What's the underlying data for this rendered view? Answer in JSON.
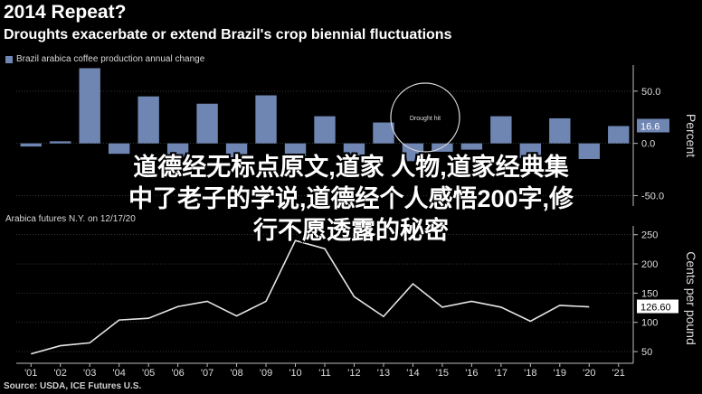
{
  "header": {
    "title": "2014 Repeat?",
    "subtitle": "Droughts exacerbate or extend Brazil's crop biennial fluctuations"
  },
  "overlay": {
    "lines": [
      "道德经无标点原文,道家 人物,道家经典集",
      "中了老子的学说,道德经个人感悟200字,修",
      "行不愿透露的秘密"
    ]
  },
  "source": "Source: USDA, ICE Futures U.S.",
  "colors": {
    "bar": "#6f86b3",
    "line": "#e6e6e6",
    "background": "#000000"
  },
  "chart_data": [
    {
      "type": "bar",
      "legend": "Brazil arabica coffee production annual change",
      "ylabel": "Percent",
      "ylim": [
        -60,
        75
      ],
      "yticks": [
        "-50.0",
        "0.0",
        "50.0"
      ],
      "grid": true,
      "categories": [
        "'01",
        "'02",
        "'03",
        "'04",
        "'05",
        "'06",
        "'07",
        "'08",
        "'09",
        "'10",
        "'11",
        "'12",
        "'13",
        "'14",
        "'15",
        "'16",
        "'17",
        "'18",
        "'19",
        "'20",
        "'21"
      ],
      "values": [
        -3,
        2,
        72,
        -10,
        45,
        -14,
        38,
        -14,
        46,
        -18,
        26,
        -13,
        20,
        -17,
        -8,
        -6,
        26,
        -14,
        24,
        -15,
        16.6
      ],
      "last_value_label": "16.6",
      "annotation": "Drought hit"
    },
    {
      "type": "line",
      "legend": "Arabica futures N.Y. on 12/17/20",
      "ylabel": "Cents per pound",
      "ylim": [
        30,
        265
      ],
      "yticks": [
        "50",
        "100",
        "150",
        "200",
        "250"
      ],
      "grid": true,
      "x": [
        "'01",
        "'02",
        "'03",
        "'04",
        "'05",
        "'06",
        "'07",
        "'08",
        "'09",
        "'10",
        "'11",
        "'12",
        "'13",
        "'14",
        "'15",
        "'16",
        "'17",
        "'18",
        "'19",
        "'20",
        "'21"
      ],
      "values": [
        46,
        60,
        65,
        104,
        107,
        127,
        136,
        111,
        136,
        240,
        226,
        144,
        110,
        166,
        126,
        136,
        126,
        102,
        129,
        126.6,
        null
      ],
      "last_value_label": "126.60"
    }
  ]
}
